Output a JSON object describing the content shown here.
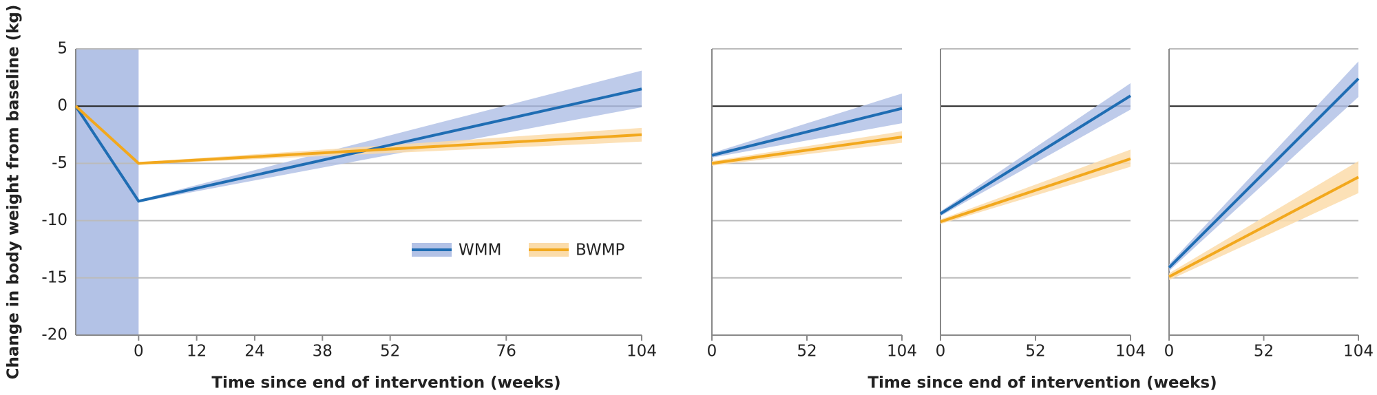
{
  "chart_data": [
    {
      "type": "line",
      "ylabel": "Change in body weight from baseline (kg)",
      "xlabel": "Time since end of intervention (weeks)",
      "xlim": [
        -13,
        104
      ],
      "xticks": [
        0,
        12,
        24,
        38,
        52,
        76,
        104
      ],
      "ylim": [
        -20,
        5
      ],
      "yticks": [
        5,
        0,
        -5,
        -10,
        -15,
        -20
      ],
      "grid": true,
      "shaded_x": [
        -13,
        0
      ],
      "shade_color": "#b3c2e6",
      "x": [
        -13,
        0,
        104
      ],
      "series": [
        {
          "name": "WMM",
          "color": "#1f6db3",
          "band_color": "#b3c2e6",
          "values": [
            0,
            -8.3,
            1.5
          ],
          "lower": [
            0,
            -8.4,
            -0.1
          ],
          "upper": [
            0,
            -8.2,
            3.1
          ]
        },
        {
          "name": "BWMP",
          "color": "#f2a81d",
          "band_color": "#fbdcaa",
          "values": [
            0,
            -5,
            -2.5
          ],
          "lower": [
            0,
            -5.1,
            -3.1
          ],
          "upper": [
            0,
            -4.9,
            -1.9
          ]
        }
      ]
    },
    {
      "type": "line",
      "xlim": [
        0,
        104
      ],
      "xticks": [
        0,
        52,
        104
      ],
      "ylim": [
        -20,
        5
      ],
      "yticks": [
        5,
        0,
        -5,
        -10,
        -15,
        -20
      ],
      "grid": true,
      "x": [
        0,
        104
      ],
      "series": [
        {
          "color": "#1f6db3",
          "band_color": "#b3c2e6",
          "values": [
            -4.3,
            -0.2
          ],
          "lower": [
            -4.5,
            -1.5
          ],
          "upper": [
            -4.1,
            1.1
          ]
        },
        {
          "color": "#f2a81d",
          "band_color": "#fbdcaa",
          "values": [
            -5,
            -2.7
          ],
          "lower": [
            -5.2,
            -3.2
          ],
          "upper": [
            -4.8,
            -2.2
          ]
        }
      ]
    },
    {
      "type": "line",
      "xlabel": "Time since end of intervention (weeks)",
      "xlim": [
        0,
        104
      ],
      "xticks": [
        0,
        52,
        104
      ],
      "ylim": [
        -20,
        5
      ],
      "yticks": [
        5,
        0,
        -5,
        -10,
        -15,
        -20
      ],
      "grid": true,
      "x": [
        0,
        104
      ],
      "series": [
        {
          "color": "#1f6db3",
          "band_color": "#b3c2e6",
          "values": [
            -9.4,
            0.9
          ],
          "lower": [
            -9.6,
            -0.3
          ],
          "upper": [
            -9.2,
            2.0
          ]
        },
        {
          "color": "#f2a81d",
          "band_color": "#fbdcaa",
          "values": [
            -10.1,
            -4.6
          ],
          "lower": [
            -10.3,
            -5.3
          ],
          "upper": [
            -9.9,
            -3.8
          ]
        }
      ]
    },
    {
      "type": "line",
      "xlim": [
        0,
        104
      ],
      "xticks": [
        0,
        52,
        104
      ],
      "ylim": [
        -20,
        5
      ],
      "yticks": [
        5,
        0,
        -5,
        -10,
        -15,
        -20
      ],
      "grid": true,
      "x": [
        0,
        104
      ],
      "series": [
        {
          "color": "#1f6db3",
          "band_color": "#b3c2e6",
          "values": [
            -14.1,
            2.4
          ],
          "lower": [
            -14.4,
            0.8
          ],
          "upper": [
            -13.8,
            3.9
          ]
        },
        {
          "color": "#f2a81d",
          "band_color": "#fbdcaa",
          "values": [
            -14.9,
            -6.2
          ],
          "lower": [
            -15.2,
            -7.6
          ],
          "upper": [
            -14.6,
            -4.8
          ]
        }
      ]
    }
  ]
}
